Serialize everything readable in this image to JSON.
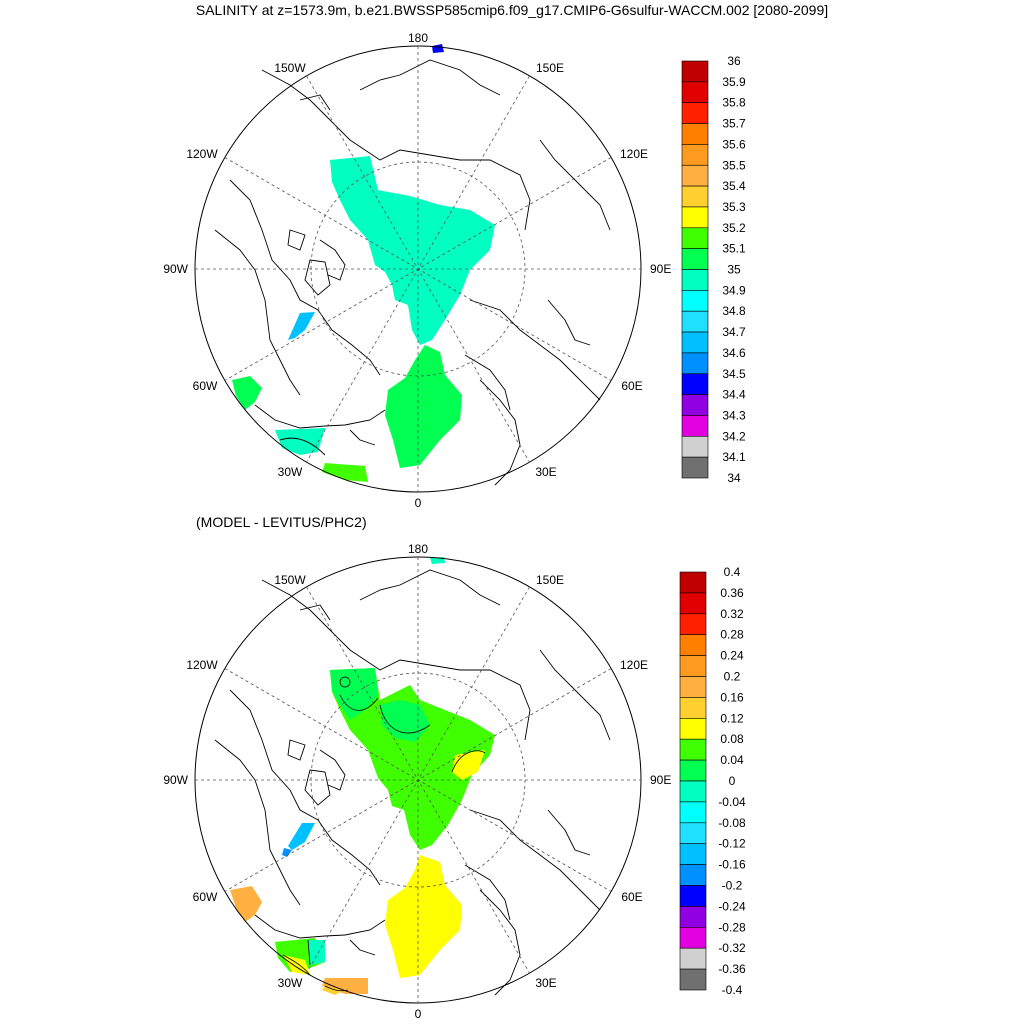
{
  "title": "SALINITY at z=1573.9m, b.e21.BWSSP585cmip6.f09_g17.CMIP6-G6sulfur-WACCM.002 [2080-2099]",
  "subtitle": "(MODEL - LEVITUS/PHC2)",
  "meridian_labels": {
    "top": "180",
    "bottom": "0",
    "left": "90W",
    "right": "90E",
    "upper_left_150": "150W",
    "upper_right_150": "150E",
    "upper_left_120": "120W",
    "upper_right_120": "120E",
    "lower_left_60": "60W",
    "lower_right_60": "60E",
    "lower_left_30": "30W",
    "lower_right_30": "30E"
  },
  "colorbars": [
    {
      "labels": [
        "36",
        "35.9",
        "35.8",
        "35.7",
        "35.6",
        "35.5",
        "35.4",
        "35.3",
        "35.2",
        "35.1",
        "35",
        "34.9",
        "34.8",
        "34.7",
        "34.6",
        "34.5",
        "34.4",
        "34.3",
        "34.2",
        "34.1",
        "34"
      ],
      "colors": [
        "#c00000",
        "#e00000",
        "#ff2000",
        "#ff8000",
        "#ff9a20",
        "#ffb040",
        "#ffd030",
        "#ffff00",
        "#40ff00",
        "#00ff50",
        "#00ffc0",
        "#00ffff",
        "#20e0ff",
        "#00c0ff",
        "#0090ff",
        "#0000ff",
        "#9000e0",
        "#e000e0",
        "#d0d0d0",
        "#707070"
      ]
    },
    {
      "labels": [
        "0.4",
        "0.36",
        "0.32",
        "0.28",
        "0.24",
        "0.2",
        "0.16",
        "0.12",
        "0.08",
        "0.04",
        "0",
        "-0.04",
        "-0.08",
        "-0.12",
        "-0.16",
        "-0.2",
        "-0.24",
        "-0.28",
        "-0.32",
        "-0.36",
        "-0.4"
      ],
      "colors": [
        "#c00000",
        "#e00000",
        "#ff2000",
        "#ff8000",
        "#ff9a20",
        "#ffb040",
        "#ffd030",
        "#ffff00",
        "#40ff00",
        "#00ff50",
        "#00ffc0",
        "#00ffff",
        "#20e0ff",
        "#00c0ff",
        "#0090ff",
        "#0000ff",
        "#9000e0",
        "#e000e0",
        "#d0d0d0",
        "#707070"
      ]
    }
  ],
  "fill_colors": {
    "cyan_green": "#00ffc0",
    "green": "#00ff50",
    "light_blue": "#00c0ff",
    "blue": "#0000ff",
    "lime": "#40ff00",
    "yellow": "#ffff00",
    "orange": "#ffb040",
    "yellow_orange": "#ffd030"
  }
}
